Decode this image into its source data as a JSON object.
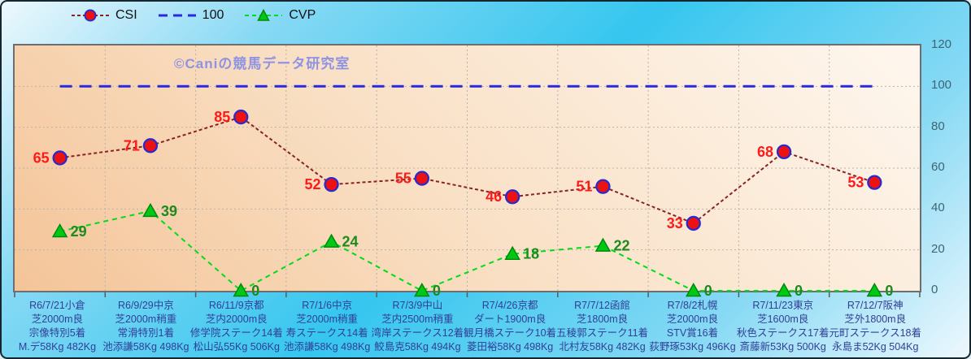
{
  "watermark": "©Caniの競馬データ研究室",
  "chart_data": {
    "type": "line",
    "title": "",
    "xlabel": "",
    "ylabel": "",
    "ylim": [
      0,
      120
    ],
    "yticks": [
      0,
      20,
      40,
      60,
      80,
      100,
      120
    ],
    "grid": true,
    "legend_position": "top",
    "categories": [
      [
        "R6/7/21小倉",
        "芝2000m良",
        "宗像特別5着",
        "M.デ58Kg 482Kg"
      ],
      [
        "R6/9/29中京",
        "芝2000m稍重",
        "常滑特別1着",
        "池添謙58Kg 498Kg"
      ],
      [
        "R6/11/9京都",
        "芝内2000m良",
        "修学院ステーク14着",
        "松山弘55Kg 506Kg"
      ],
      [
        "R7/1/6中京",
        "芝2000m稍重",
        "寿ステークス14着",
        "池添謙58Kg 498Kg"
      ],
      [
        "R7/3/9中山",
        "芝内2500m稍重",
        "湾岸ステークス12着",
        "鮫島克58Kg 494Kg"
      ],
      [
        "R7/4/26京都",
        "ダート1900m良",
        "観月橋ステーク10着",
        "菱田裕58Kg 498Kg"
      ],
      [
        "R7/7/12函館",
        "芝1800m良",
        "五稜郭ステーク11着",
        "北村友58Kg 482Kg"
      ],
      [
        "R7/8/2札幌",
        "芝2000m良",
        "STV賞16着",
        "荻野琢53Kg 496Kg"
      ],
      [
        "R7/11/23東京",
        "芝1600m良",
        "秋色ステークス17着",
        "斎藤新53Kg 500Kg"
      ],
      [
        "R7/12/7阪神",
        "芝外1800m良",
        "元町ステークス18着",
        "永島ま52Kg 504Kg"
      ]
    ],
    "series": [
      {
        "name": "CSI",
        "values": [
          65,
          71,
          85,
          52,
          55,
          46,
          51,
          33,
          68,
          53
        ],
        "line_color": "#8B2222",
        "dash": "4 3",
        "marker": "circle",
        "marker_fill": "#EE1111",
        "marker_edge": "#2B2BCC",
        "label_color": "#FF1A1A"
      },
      {
        "name": "100",
        "values": [
          100,
          100,
          100,
          100,
          100,
          100,
          100,
          100,
          100,
          100
        ],
        "line_color": "#2A2ADC",
        "dash": "15 9",
        "marker": "none"
      },
      {
        "name": "CVP",
        "values": [
          29,
          39,
          0,
          24,
          0,
          18,
          22,
          0,
          0,
          0
        ],
        "line_color": "#00DC1C",
        "dash": "6 5",
        "marker": "triangle",
        "marker_fill": "#00C814",
        "marker_edge": "#008A0A",
        "label_color": "#1E8A1E"
      }
    ]
  },
  "colors": {
    "background_mid": "#35C6EF",
    "plot_light": "#FEF7EF",
    "plot_dark": "#F4C498",
    "axis_label": "#3D6572",
    "category_label": "#303F96",
    "watermark": "#8F93E2"
  }
}
